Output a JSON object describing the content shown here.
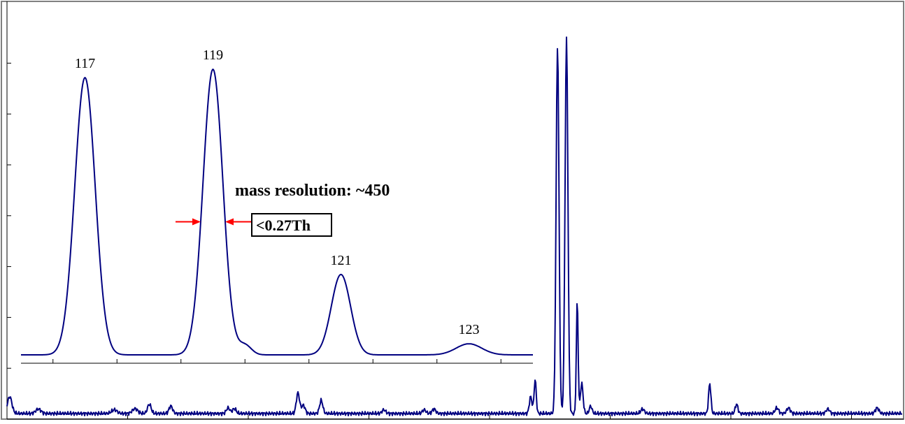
{
  "colors": {
    "spectrum": "#000080",
    "arrow": "#ff0000",
    "axis": "#000000",
    "frame": "#808080"
  },
  "chart_data": [
    {
      "type": "line",
      "name": "full-spectrum",
      "x_range": [
        0,
        1000
      ],
      "y_range": [
        0,
        100
      ],
      "ticks_x": [
        0,
        100,
        200,
        300,
        400,
        500,
        600,
        700
      ],
      "ticks_y": [
        16,
        32,
        48,
        64,
        80,
        96,
        112
      ],
      "peaks": [
        {
          "x": 3,
          "y": 4.5,
          "w": 2.5
        },
        {
          "x": 35,
          "y": 1.2,
          "w": 3
        },
        {
          "x": 120,
          "y": 1,
          "w": 3
        },
        {
          "x": 143,
          "y": 1.3,
          "w": 3
        },
        {
          "x": 159,
          "y": 2.5,
          "w": 2
        },
        {
          "x": 183,
          "y": 2,
          "w": 2
        },
        {
          "x": 247,
          "y": 1.5,
          "w": 2
        },
        {
          "x": 254,
          "y": 1.3,
          "w": 2
        },
        {
          "x": 325,
          "y": 5.5,
          "w": 1.8
        },
        {
          "x": 331,
          "y": 2.2,
          "w": 2
        },
        {
          "x": 351,
          "y": 3.5,
          "w": 1.8
        },
        {
          "x": 421,
          "y": 1,
          "w": 2
        },
        {
          "x": 466,
          "y": 1,
          "w": 2
        },
        {
          "x": 477,
          "y": 1.2,
          "w": 2
        },
        {
          "x": 585,
          "y": 4.5,
          "w": 1.5
        },
        {
          "x": 590,
          "y": 9,
          "w": 1.2
        },
        {
          "x": 615,
          "y": 98,
          "w": 1.6
        },
        {
          "x": 625,
          "y": 100,
          "w": 1.6
        },
        {
          "x": 637,
          "y": 30,
          "w": 1
        },
        {
          "x": 642,
          "y": 8,
          "w": 1.5
        },
        {
          "x": 652,
          "y": 2,
          "w": 1.5
        },
        {
          "x": 710,
          "y": 1.2,
          "w": 2
        },
        {
          "x": 785,
          "y": 8,
          "w": 1.3
        },
        {
          "x": 815,
          "y": 2.5,
          "w": 1.5
        },
        {
          "x": 860,
          "y": 1.5,
          "w": 2
        },
        {
          "x": 873,
          "y": 1.5,
          "w": 2
        },
        {
          "x": 917,
          "y": 1.2,
          "w": 2
        },
        {
          "x": 972,
          "y": 1.5,
          "w": 2
        }
      ]
    },
    {
      "type": "line",
      "name": "inset-zoom",
      "x_range": [
        116,
        124
      ],
      "y_range": [
        0,
        100
      ],
      "ticks_x": [
        116.5,
        117.5,
        118.5,
        119.5,
        120.5,
        121.5,
        122.5,
        123.5
      ],
      "peak_labels": [
        {
          "x": 117,
          "text": "117"
        },
        {
          "x": 119,
          "text": "119"
        },
        {
          "x": 121,
          "text": "121"
        },
        {
          "x": 123,
          "text": "123"
        }
      ],
      "peaks": [
        {
          "x": 117,
          "y": 100,
          "w": 0.16
        },
        {
          "x": 119,
          "y": 103,
          "w": 0.155
        },
        {
          "x": 119.5,
          "y": 3.5,
          "w": 0.1
        },
        {
          "x": 121,
          "y": 29,
          "w": 0.15
        },
        {
          "x": 123,
          "y": 4,
          "w": 0.2
        }
      ],
      "annotation": {
        "title": "mass resolution: ~450",
        "width_label": "<0.27Th",
        "width_at": 119,
        "width_value_y": 48
      }
    }
  ]
}
